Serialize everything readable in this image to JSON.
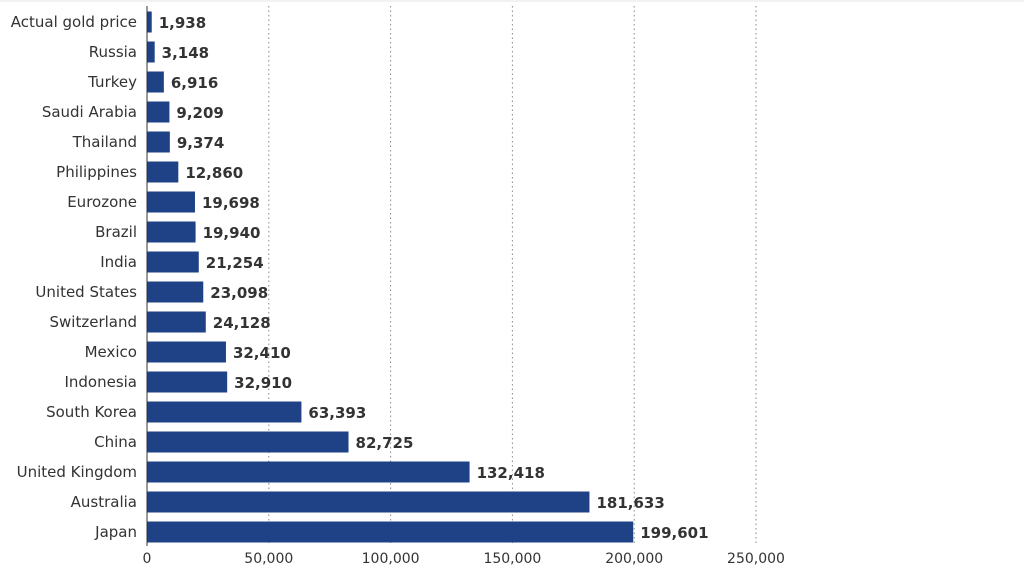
{
  "chart_data": {
    "type": "bar",
    "orientation": "horizontal",
    "title": "",
    "xlabel": "",
    "ylabel": "",
    "categories": [
      "Actual gold price",
      "Russia",
      "Turkey",
      "Saudi Arabia",
      "Thailand",
      "Philippines",
      "Eurozone",
      "Brazil",
      "India",
      "United States",
      "Switzerland",
      "Mexico",
      "Indonesia",
      "South Korea",
      "China",
      "United Kingdom",
      "Australia",
      "Japan"
    ],
    "values": [
      1938,
      3148,
      6916,
      9209,
      9374,
      12860,
      19698,
      19940,
      21254,
      23098,
      24128,
      32410,
      32910,
      63393,
      82725,
      132418,
      181633,
      199601
    ],
    "value_labels": [
      "1,938",
      "3,148",
      "6,916",
      "9,209",
      "9,374",
      "12,860",
      "19,698",
      "19,940",
      "21,254",
      "23,098",
      "24,128",
      "32,410",
      "32,910",
      "63,393",
      "82,725",
      "132,418",
      "181,633",
      "199,601"
    ],
    "xlim": [
      0,
      250000
    ],
    "ticks": [
      0,
      50000,
      100000,
      150000,
      200000,
      250000
    ],
    "tick_labels": [
      "0",
      "50,000",
      "100,000",
      "150,000",
      "200,000",
      "250,000"
    ],
    "grid": "vertical dotted",
    "bar_color": "#1f4287"
  }
}
